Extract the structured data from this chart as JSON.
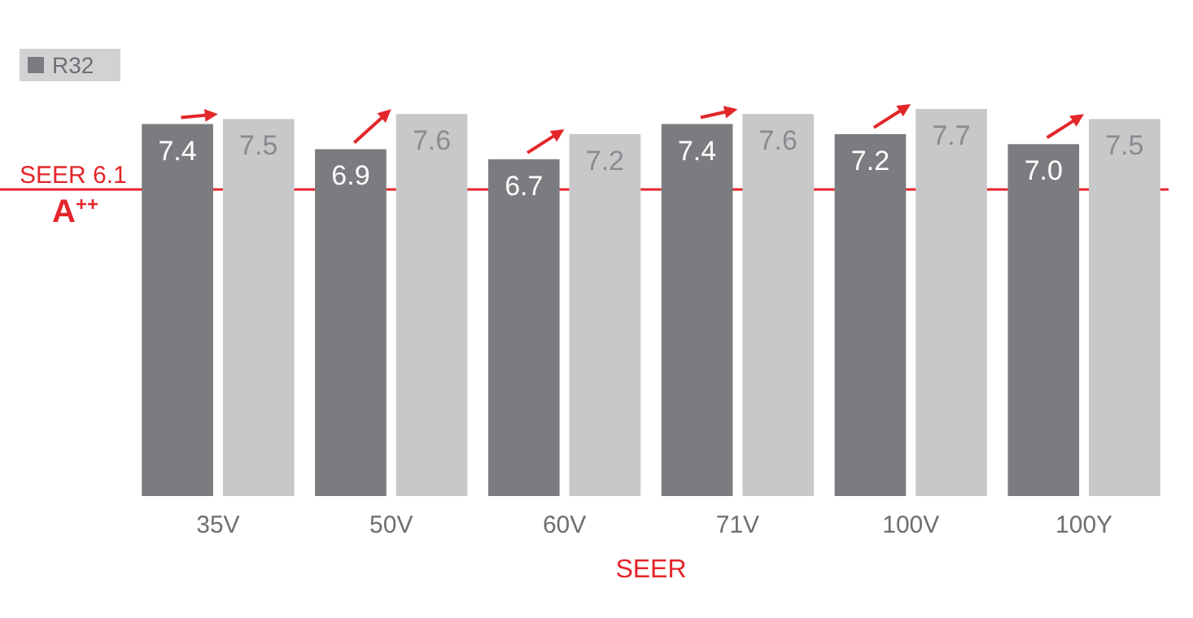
{
  "chart_data": {
    "type": "bar",
    "xlabel": "SEER",
    "categories": [
      "35V",
      "50V",
      "60V",
      "71V",
      "100V",
      "100Y"
    ],
    "series": [
      {
        "name": "R32",
        "color": "#7b7c80",
        "values": [
          7.4,
          6.9,
          6.7,
          7.4,
          7.2,
          7.0
        ],
        "value_labels": [
          "7.4",
          "6.9",
          "6.7",
          "7.4",
          "7.2",
          "7.0"
        ]
      },
      {
        "color": "#c8c8ca",
        "values": [
          7.5,
          7.6,
          7.2,
          7.6,
          7.7,
          7.5
        ],
        "value_labels": [
          "7.5",
          "7.6",
          "7.2",
          "7.6",
          "7.7",
          "7.5"
        ]
      }
    ],
    "legend": "top left",
    "tick_labels": "x",
    "ref_lines": [
      {
        "axis": "y",
        "value": 6.1,
        "label": "SEER 6.1",
        "color": "#e3262a"
      }
    ],
    "annotations": [
      {
        "text": "A$^{++}$",
        "y": 6.1
      }
    ]
  }
}
